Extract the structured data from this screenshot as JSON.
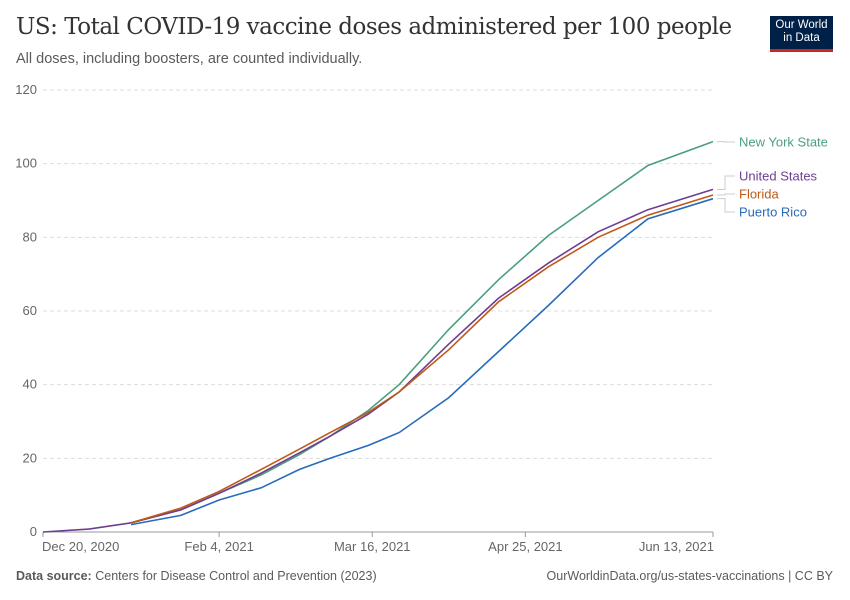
{
  "header": {
    "title": "US: Total COVID-19 vaccine doses administered per 100 people",
    "subtitle": "All doses, including boosters, are counted individually.",
    "logo_text": "Our World in Data"
  },
  "footer": {
    "source_label": "Data source:",
    "source": "Centers for Disease Control and Prevention (2023)",
    "url": "OurWorldinData.org/us-states-vaccinations | CC BY"
  },
  "chart_data": {
    "type": "line",
    "title": "US: Total COVID-19 vaccine doses administered per 100 people",
    "ylim": [
      0,
      120
    ],
    "yticks": [
      0,
      20,
      40,
      60,
      80,
      100,
      120
    ],
    "xlim": [
      "2020-12-20",
      "2021-06-13"
    ],
    "xticks": [
      {
        "date": "2020-12-20",
        "label": "Dec 20, 2020"
      },
      {
        "date": "2021-02-04",
        "label": "Feb 4, 2021"
      },
      {
        "date": "2021-03-16",
        "label": "Mar 16, 2021"
      },
      {
        "date": "2021-04-25",
        "label": "Apr 25, 2021"
      },
      {
        "date": "2021-06-13",
        "label": "Jun 13, 2021"
      }
    ],
    "grid": "horizontal dashed",
    "legend": "right (line end labels)",
    "x": [
      "2020-12-20",
      "2021-01-01",
      "2021-01-12",
      "2021-01-25",
      "2021-02-04",
      "2021-02-15",
      "2021-02-25",
      "2021-03-05",
      "2021-03-15",
      "2021-03-23",
      "2021-04-05",
      "2021-04-18",
      "2021-05-01",
      "2021-05-14",
      "2021-05-27",
      "2021-06-13"
    ],
    "series": [
      {
        "name": "New York State",
        "color": "#4c9e7f",
        "values": [
          null,
          null,
          2.5,
          6,
          10.5,
          15.5,
          21,
          26,
          33,
          40,
          55,
          68.5,
          80.5,
          90,
          99.5,
          106
        ]
      },
      {
        "name": "United States",
        "color": "#6d3e91",
        "values": [
          0,
          0.8,
          2.5,
          6,
          10.5,
          16,
          21.5,
          26,
          32,
          38,
          51,
          63.5,
          73,
          81.5,
          87.5,
          93
        ]
      },
      {
        "name": "Florida",
        "color": "#c05917",
        "values": [
          null,
          null,
          2.5,
          6.5,
          11,
          17,
          22.5,
          27,
          32.5,
          38,
          49.5,
          62.5,
          72,
          80,
          86,
          91.5
        ]
      },
      {
        "name": "Puerto Rico",
        "color": "#286bbb",
        "values": [
          null,
          null,
          2,
          4.5,
          8.7,
          12,
          17,
          20,
          23.5,
          27,
          36.5,
          49,
          61.5,
          74.5,
          85,
          90.5
        ]
      }
    ]
  }
}
